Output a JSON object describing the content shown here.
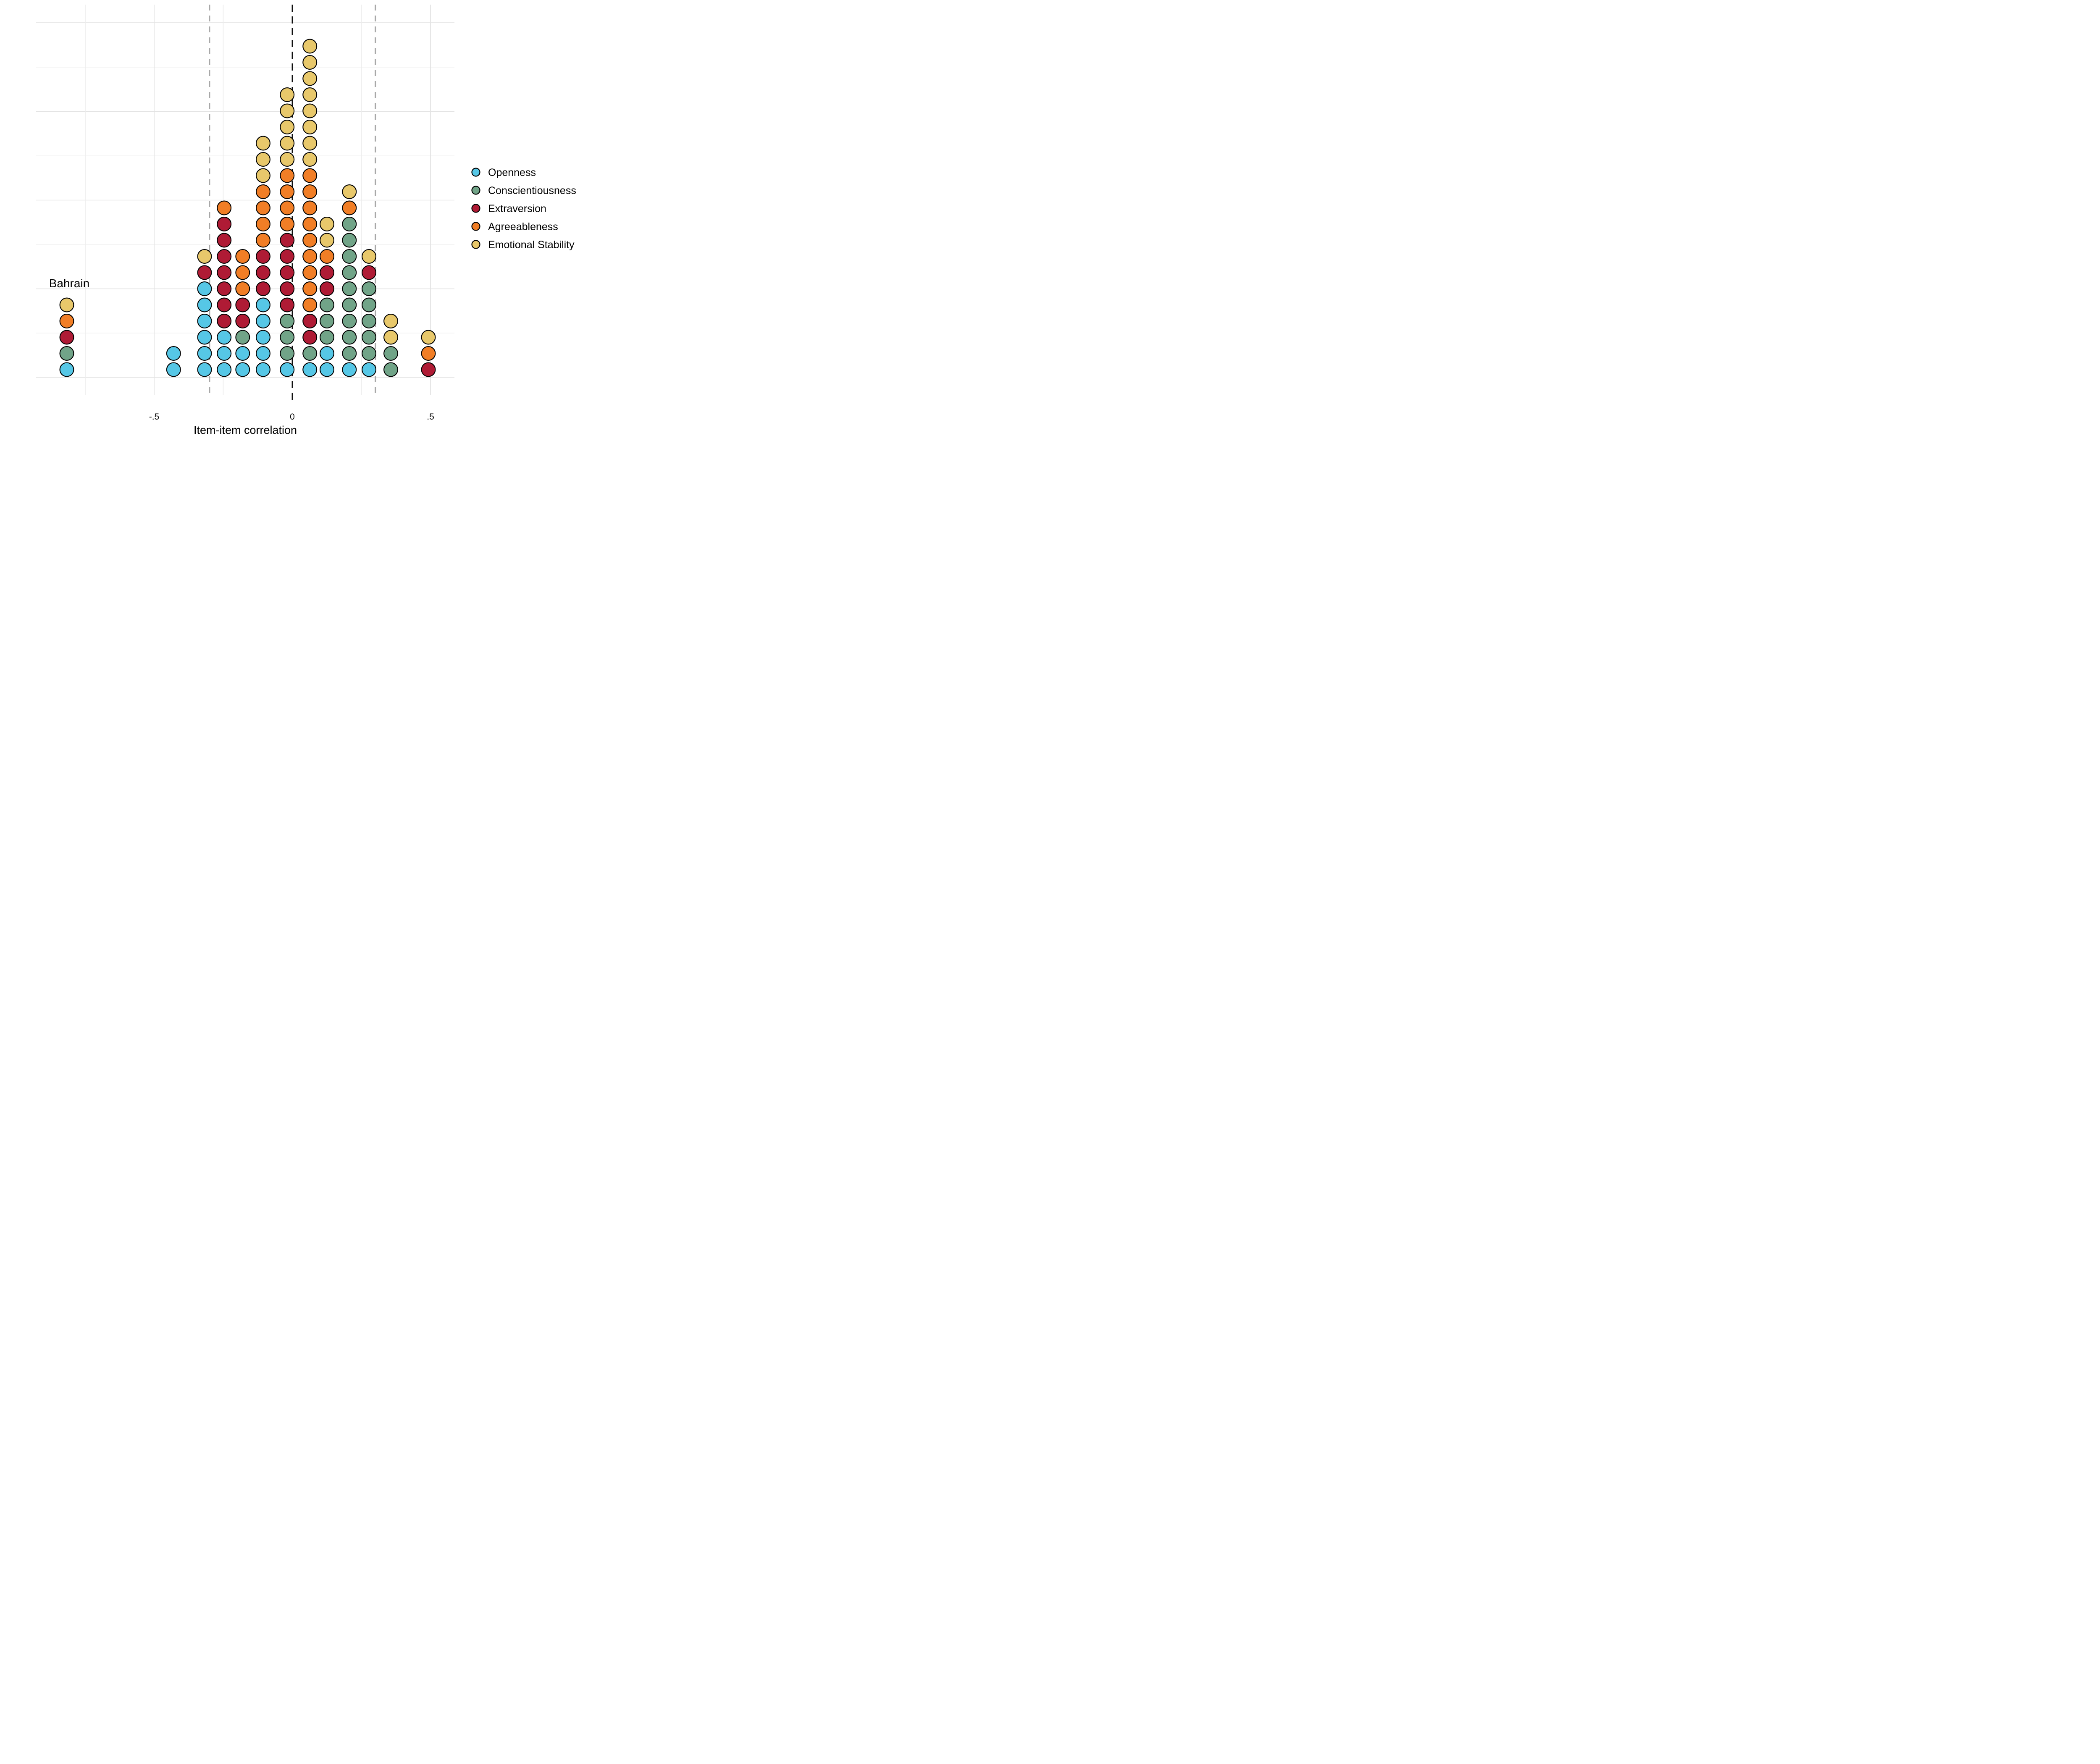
{
  "figure": {
    "country_label": "Bahrain"
  },
  "x_axis": {
    "label": "Item-item correlation",
    "ticks": [
      {
        "label": "-.5",
        "value": -0.5
      },
      {
        "label": "0",
        "value": 0
      },
      {
        "label": ".5",
        "value": 0.5
      }
    ]
  },
  "chart_data": {
    "type": "dot-histogram",
    "title": "",
    "xlabel": "Item-item correlation",
    "x_range": [
      -0.93,
      0.59
    ],
    "grid": "on",
    "legend_position": "right",
    "traits": [
      {
        "key": "O",
        "label": "Openness",
        "color": "#56C7E6"
      },
      {
        "key": "C",
        "label": "Conscientiousness",
        "color": "#71A488"
      },
      {
        "key": "E",
        "label": "Extraversion",
        "color": "#AF1B35"
      },
      {
        "key": "A",
        "label": "Agreeableness",
        "color": "#F17E26"
      },
      {
        "key": "S",
        "label": "Emotional Stability",
        "color": "#E8C86B"
      }
    ],
    "dot_outline_color": "#000000",
    "reference_lines": [
      {
        "value": 0,
        "color": "#111111",
        "dash": "17,11",
        "width": 3.4
      },
      {
        "value": -0.3,
        "color": "#A8A8A8",
        "dash": "14,12",
        "width": 3.2
      },
      {
        "value": 0.3,
        "color": "#A8A8A8",
        "dash": "14,12",
        "width": 3.2
      }
    ],
    "stacks": [
      {
        "x": -0.43,
        "dots": [
          "O",
          "O"
        ]
      },
      {
        "x": -0.318,
        "dots": [
          "O",
          "O",
          "O",
          "O",
          "O",
          "O",
          "E",
          "S"
        ]
      },
      {
        "x": -0.247,
        "dots": [
          "O",
          "O",
          "O",
          "E",
          "E",
          "E",
          "E",
          "E",
          "E",
          "E",
          "A"
        ]
      },
      {
        "x": -0.18,
        "dots": [
          "O",
          "O",
          "C",
          "E",
          "E",
          "A",
          "A",
          "A"
        ]
      },
      {
        "x": -0.106,
        "dots": [
          "O",
          "O",
          "O",
          "O",
          "O",
          "E",
          "E",
          "E",
          "A",
          "A",
          "A",
          "A",
          "S",
          "S",
          "S"
        ]
      },
      {
        "x": -0.019,
        "dots": [
          "O",
          "C",
          "C",
          "C",
          "E",
          "E",
          "E",
          "E",
          "E",
          "A",
          "A",
          "A",
          "A",
          "S",
          "S",
          "S",
          "S",
          "S"
        ]
      },
      {
        "x": 0.063,
        "dots": [
          "O",
          "C",
          "E",
          "E",
          "A",
          "A",
          "A",
          "A",
          "A",
          "A",
          "A",
          "A",
          "A",
          "S",
          "S",
          "S",
          "S",
          "S",
          "S",
          "S",
          "S"
        ]
      },
      {
        "x": 0.125,
        "dots": [
          "O",
          "O",
          "C",
          "C",
          "C",
          "E",
          "E",
          "A",
          "S",
          "S"
        ]
      },
      {
        "x": 0.206,
        "dots": [
          "O",
          "C",
          "C",
          "C",
          "C",
          "C",
          "C",
          "C",
          "C",
          "C",
          "A",
          "S"
        ]
      },
      {
        "x": 0.277,
        "dots": [
          "O",
          "C",
          "C",
          "C",
          "C",
          "C",
          "E",
          "S"
        ]
      },
      {
        "x": 0.356,
        "dots": [
          "C",
          "C",
          "S",
          "S"
        ]
      },
      {
        "x": 0.492,
        "dots": [
          "E",
          "A",
          "S"
        ]
      }
    ],
    "country_stack": {
      "label": "Bahrain",
      "dots": [
        "O",
        "C",
        "E",
        "A",
        "S"
      ]
    }
  }
}
